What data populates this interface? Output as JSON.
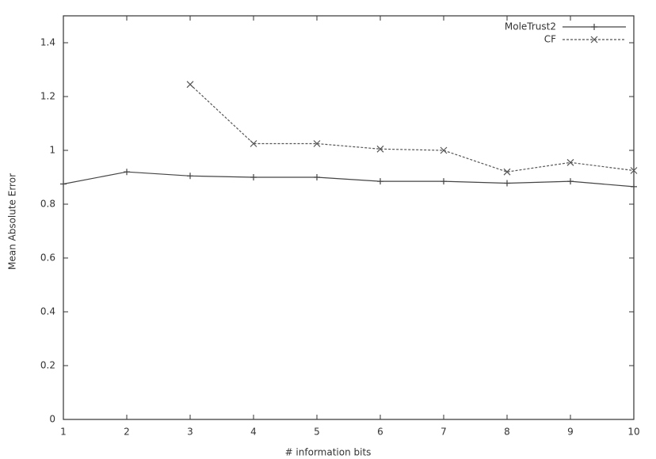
{
  "chart_data": {
    "type": "line",
    "x_label": "# information bits",
    "y_label": "Mean Absolute Error",
    "x": [
      1,
      2,
      3,
      4,
      5,
      6,
      7,
      8,
      9,
      10
    ],
    "series": [
      {
        "name": "MoleTrust2",
        "color": "#444444",
        "marker": "plus",
        "line_style": "solid",
        "values": [
          0.875,
          0.92,
          0.905,
          0.9,
          0.9,
          0.885,
          0.885,
          0.878,
          0.885,
          0.865
        ]
      },
      {
        "name": "CF",
        "color": "#555555",
        "marker": "cross",
        "line_style": "dashed",
        "values": [
          null,
          null,
          1.245,
          1.025,
          1.025,
          1.005,
          1.0,
          0.92,
          0.955,
          0.925
        ]
      }
    ],
    "xlim": [
      1,
      10
    ],
    "xticks": [
      1,
      2,
      3,
      4,
      5,
      6,
      7,
      8,
      9,
      10
    ],
    "ylim": [
      0,
      1.5
    ],
    "yticks": [
      0,
      0.2,
      0.4,
      0.6,
      0.8,
      1,
      1.2,
      1.4
    ],
    "grid": false,
    "legend": "upper right"
  }
}
